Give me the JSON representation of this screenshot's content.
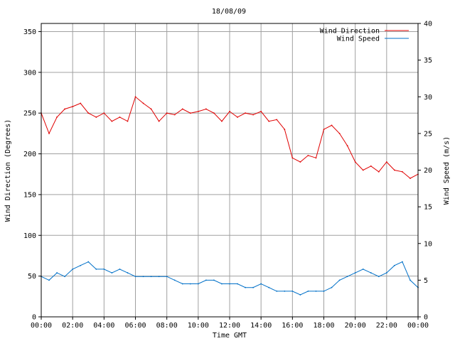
{
  "chart_data": {
    "type": "line",
    "title": "18/08/09",
    "xlabel": "Time GMT",
    "ylabel_left": "Wind Direction (Degrees)",
    "ylabel_right": "Wind Speed (m/s)",
    "xlim": [
      0,
      24
    ],
    "ylim_left": [
      0,
      360
    ],
    "ylim_right": [
      0,
      40
    ],
    "x_ticks": [
      "00:00",
      "02:00",
      "04:00",
      "06:00",
      "08:00",
      "10:00",
      "12:00",
      "14:00",
      "16:00",
      "18:00",
      "20:00",
      "22:00",
      "00:00"
    ],
    "y_left_ticks": [
      "0",
      "50",
      "100",
      "150",
      "200",
      "250",
      "300",
      "350"
    ],
    "y_right_ticks": [
      "0",
      "5",
      "10",
      "15",
      "20",
      "25",
      "30",
      "35",
      "40"
    ],
    "grid": true,
    "legend_position": "top-right",
    "series": [
      {
        "name": "Wind Direction",
        "axis": "left",
        "color": "#e00000",
        "x": [
          0,
          0.5,
          1,
          1.5,
          2,
          2.5,
          3,
          3.5,
          4,
          4.5,
          5,
          5.5,
          6,
          6.5,
          7,
          7.5,
          8,
          8.5,
          9,
          9.5,
          10,
          10.5,
          11,
          11.5,
          12,
          12.5,
          13,
          13.5,
          14,
          14.5,
          15,
          15.5,
          16,
          16.5,
          17,
          17.5,
          18,
          18.5,
          19,
          19.5,
          20,
          20.5,
          21,
          21.5,
          22,
          22.5,
          23,
          23.5,
          24
        ],
        "values": [
          250,
          225,
          245,
          255,
          258,
          262,
          250,
          245,
          250,
          240,
          245,
          240,
          270,
          262,
          255,
          240,
          250,
          248,
          255,
          250,
          252,
          255,
          250,
          240,
          252,
          245,
          250,
          248,
          252,
          240,
          242,
          230,
          195,
          190,
          198,
          195,
          230,
          235,
          225,
          210,
          190,
          180,
          185,
          178,
          190,
          180,
          178,
          170,
          175
        ]
      },
      {
        "name": "Wind Speed",
        "axis": "right",
        "color": "#0070c8",
        "x": [
          0,
          0.5,
          1,
          1.5,
          2,
          2.5,
          3,
          3.5,
          4,
          4.5,
          5,
          5.5,
          6,
          6.5,
          7,
          7.5,
          8,
          8.5,
          9,
          9.5,
          10,
          10.5,
          11,
          11.5,
          12,
          12.5,
          13,
          13.5,
          14,
          14.5,
          15,
          15.5,
          16,
          16.5,
          17,
          17.5,
          18,
          18.5,
          19,
          19.5,
          20,
          20.5,
          21,
          21.5,
          22,
          22.5,
          23,
          23.5,
          24
        ],
        "values": [
          5.5,
          5,
          6,
          5.5,
          6.5,
          7,
          7.5,
          6.5,
          6.5,
          6,
          6.5,
          6,
          5.5,
          5.5,
          5.5,
          5.5,
          5.5,
          5,
          4.5,
          4.5,
          4.5,
          5,
          5,
          4.5,
          4.5,
          4.5,
          4,
          4,
          4.5,
          4,
          3.5,
          3.5,
          3.5,
          3,
          3.5,
          3.5,
          3.5,
          4,
          5,
          5.5,
          6,
          6.5,
          6,
          5.5,
          6,
          7,
          7.5,
          5,
          4
        ]
      }
    ]
  }
}
